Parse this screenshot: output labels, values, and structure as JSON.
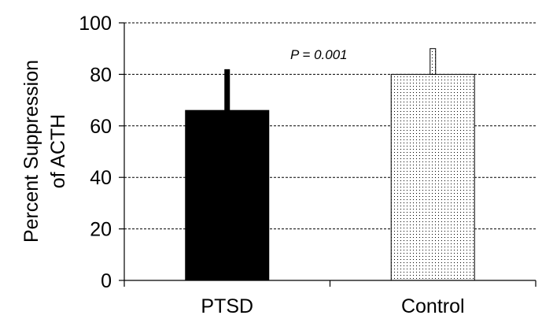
{
  "chart_data": {
    "type": "bar",
    "categories": [
      "PTSD",
      "Control"
    ],
    "values": [
      66,
      80
    ],
    "error_upper": [
      82,
      90
    ],
    "bar_fills": [
      "solid",
      "dotted"
    ],
    "colors": {
      "solid": "#000000",
      "dotted_background": "#ffffff",
      "dotted_points": "#000000",
      "grid": "#000000"
    },
    "ylabel": [
      "Percent Suppression",
      "of ACTH"
    ],
    "xlabel": "",
    "ylim": [
      0,
      100
    ],
    "yticks": [
      "0",
      "20",
      "40",
      "60",
      "80",
      "100"
    ],
    "grid": "dashed horizontal",
    "annotation": "P = 0.001"
  }
}
